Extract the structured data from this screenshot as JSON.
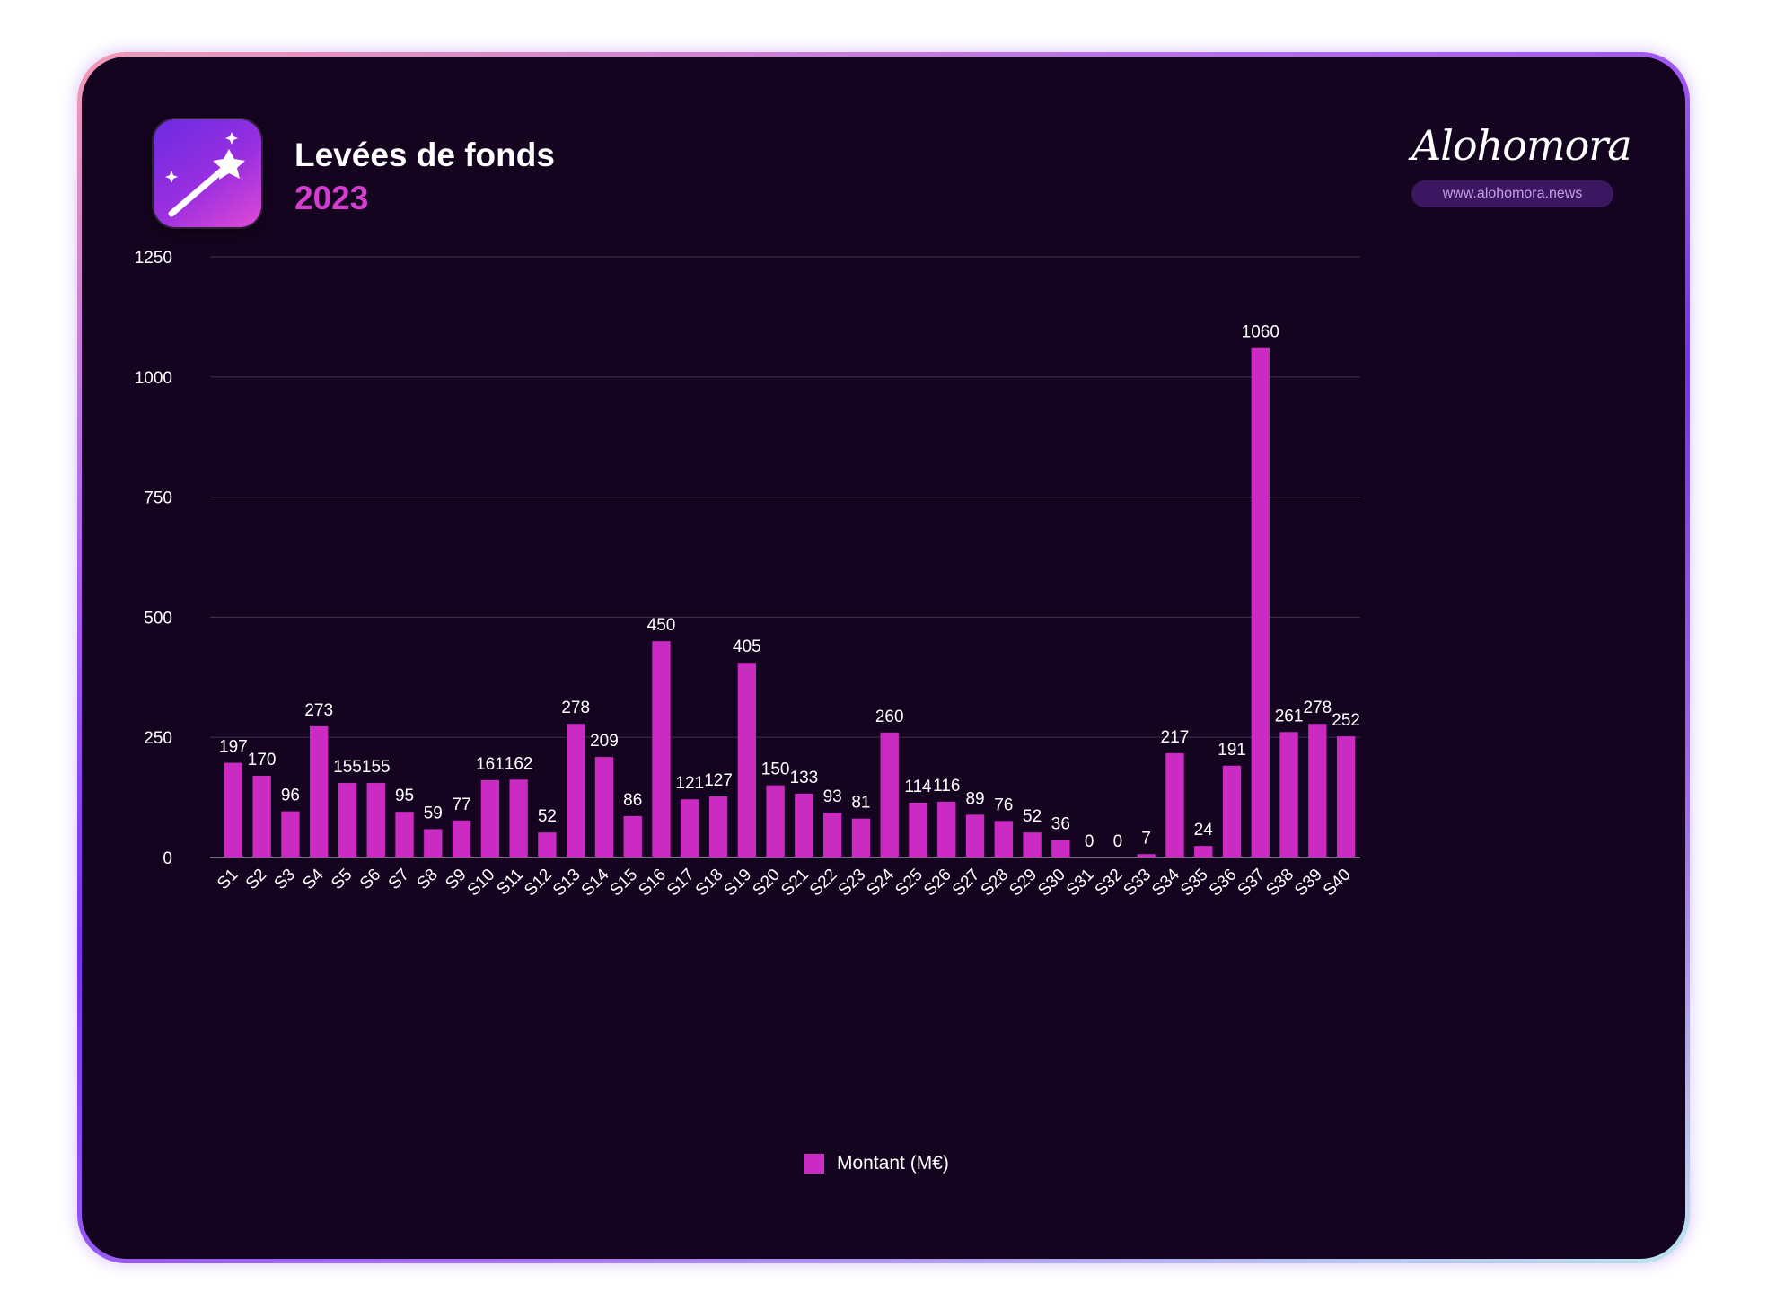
{
  "header": {
    "title": "Levées de fonds",
    "year": "2023"
  },
  "brand": {
    "name": "Alohomora",
    "url": "www.alohomora.news"
  },
  "icon": {
    "name": "magic-wand-icon"
  },
  "colors": {
    "background": "#150420",
    "bar": "#cc2bc3",
    "accent": "#d43dd0",
    "grid": "#3a2d45",
    "text": "#ffffff"
  },
  "legend": {
    "label": "Montant (M€)"
  },
  "chart_data": {
    "type": "bar",
    "categories": [
      "S1",
      "S2",
      "S3",
      "S4",
      "S5",
      "S6",
      "S7",
      "S8",
      "S9",
      "S10",
      "S11",
      "S12",
      "S13",
      "S14",
      "S15",
      "S16",
      "S17",
      "S18",
      "S19",
      "S20",
      "S21",
      "S22",
      "S23",
      "S24",
      "S25",
      "S26",
      "S27",
      "S28",
      "S29",
      "S30",
      "S31",
      "S32",
      "S33",
      "S34",
      "S35",
      "S36",
      "S37",
      "S38",
      "S39",
      "S40"
    ],
    "series": [
      {
        "name": "Montant (M€)",
        "values": [
          197,
          170,
          96,
          273,
          155,
          155,
          95,
          59,
          77,
          161,
          162,
          52,
          278,
          209,
          86,
          450,
          121,
          127,
          405,
          150,
          133,
          93,
          81,
          260,
          114,
          116,
          89,
          76,
          52,
          36,
          0,
          0,
          7,
          217,
          24,
          191,
          1060,
          261,
          278,
          252
        ]
      }
    ],
    "yticks": [
      0,
      250,
      500,
      750,
      1000,
      1250
    ],
    "ylim": [
      0,
      1250
    ],
    "grid": true,
    "data_labels": true,
    "legend_position": "bottom-center"
  }
}
